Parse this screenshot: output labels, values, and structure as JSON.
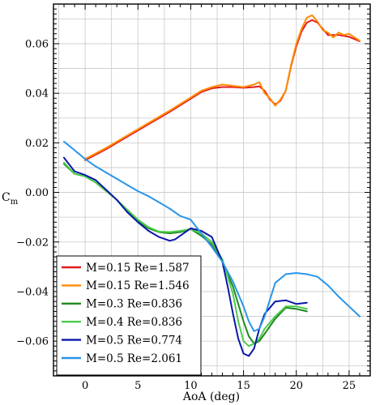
{
  "chart_data": {
    "type": "line",
    "title": "",
    "xlabel": "AoA (deg)",
    "ylabel": "C",
    "ylabel_sub": "m",
    "xlim": [
      -3,
      27
    ],
    "ylim": [
      -0.074,
      0.076
    ],
    "xticks": [
      0,
      5,
      10,
      15,
      20,
      25
    ],
    "yticks": [
      -0.06,
      -0.04,
      -0.02,
      0.0,
      0.02,
      0.04,
      0.06
    ],
    "ytick_labels": [
      "−0.06",
      "−0.04",
      "−0.02",
      "0.00",
      "0.02",
      "0.04",
      "0.06"
    ],
    "grid": true,
    "legend_position": "bottom-left",
    "series": [
      {
        "name": "M=0.15 Re=1.587",
        "color": "#e41a1c",
        "x": [
          0,
          2,
          4,
          6,
          8,
          10,
          11,
          12,
          13,
          14,
          15,
          16,
          16.5,
          17,
          17.5,
          18,
          18.5,
          19,
          19.5,
          20,
          20.5,
          21,
          21.5,
          22,
          22.5,
          23,
          24,
          25,
          26
        ],
        "y": [
          0.013,
          0.0175,
          0.0225,
          0.0275,
          0.0325,
          0.0378,
          0.0405,
          0.042,
          0.0425,
          0.0425,
          0.0422,
          0.0425,
          0.0428,
          0.041,
          0.0375,
          0.0355,
          0.037,
          0.041,
          0.051,
          0.059,
          0.065,
          0.0685,
          0.0695,
          0.0685,
          0.066,
          0.0635,
          0.0635,
          0.0628,
          0.061
        ]
      },
      {
        "name": "M=0.15 Re=1.546",
        "color": "#ff8c00",
        "x": [
          0,
          2,
          4,
          6,
          8,
          10,
          11,
          12,
          13,
          14,
          15,
          16,
          16.5,
          17,
          17.5,
          18,
          18.5,
          19,
          19.5,
          20,
          20.5,
          21,
          21.5,
          22,
          22.5,
          23,
          23.5,
          24,
          24.5,
          25,
          26
        ],
        "y": [
          0.0135,
          0.018,
          0.023,
          0.028,
          0.033,
          0.0383,
          0.041,
          0.0425,
          0.0435,
          0.043,
          0.0425,
          0.0435,
          0.0445,
          0.04,
          0.038,
          0.035,
          0.0375,
          0.041,
          0.0515,
          0.06,
          0.066,
          0.0705,
          0.0715,
          0.069,
          0.0655,
          0.0645,
          0.0625,
          0.0645,
          0.0635,
          0.064,
          0.0612
        ]
      },
      {
        "name": "M=0.3 Re=0.836",
        "color": "#1f8a1f",
        "x": [
          -2,
          -1,
          0,
          1,
          2,
          3,
          4,
          5,
          6,
          7,
          8,
          9,
          10,
          11,
          12,
          13,
          14,
          15,
          15.5,
          16,
          16.5,
          17,
          18,
          19,
          20,
          21
        ],
        "y": [
          0.0115,
          0.0075,
          0.0065,
          0.004,
          0.0005,
          -0.003,
          -0.0075,
          -0.0115,
          -0.0145,
          -0.016,
          -0.0165,
          -0.016,
          -0.0148,
          -0.0175,
          -0.021,
          -0.028,
          -0.038,
          -0.052,
          -0.058,
          -0.061,
          -0.06,
          -0.057,
          -0.051,
          -0.0465,
          -0.047,
          -0.048
        ]
      },
      {
        "name": "M=0.4 Re=0.836",
        "color": "#4ccc4c",
        "x": [
          -2,
          -1,
          0,
          1,
          2,
          3,
          4,
          5,
          6,
          7,
          8,
          9,
          10,
          11,
          12,
          13,
          14,
          14.5,
          15,
          15.5,
          16,
          16.5,
          17,
          18,
          19,
          20,
          21
        ],
        "y": [
          0.012,
          0.0075,
          0.0065,
          0.004,
          0.0005,
          -0.003,
          -0.007,
          -0.011,
          -0.014,
          -0.0158,
          -0.016,
          -0.0155,
          -0.0148,
          -0.0165,
          -0.02,
          -0.027,
          -0.041,
          -0.052,
          -0.06,
          -0.062,
          -0.061,
          -0.059,
          -0.055,
          -0.05,
          -0.046,
          -0.046,
          -0.047
        ]
      },
      {
        "name": "M=0.5 Re=0.774",
        "color": "#0b17a8",
        "x": [
          -2,
          -1,
          0,
          1,
          2,
          3,
          4,
          5,
          6,
          7,
          8,
          8.5,
          9,
          10,
          11,
          12,
          13,
          13.5,
          14,
          14.5,
          15,
          15.5,
          16,
          16.5,
          17,
          18,
          19,
          20,
          21
        ],
        "y": [
          0.014,
          0.0085,
          0.007,
          0.005,
          0.001,
          -0.003,
          -0.008,
          -0.012,
          -0.0155,
          -0.018,
          -0.0195,
          -0.019,
          -0.0175,
          -0.0145,
          -0.0155,
          -0.018,
          -0.028,
          -0.038,
          -0.049,
          -0.059,
          -0.065,
          -0.066,
          -0.063,
          -0.055,
          -0.049,
          -0.044,
          -0.0435,
          -0.045,
          -0.0445
        ]
      },
      {
        "name": "M=0.5 Re=2.061",
        "color": "#2b95e8",
        "x": [
          -2,
          -1,
          0,
          1,
          2,
          3,
          4,
          5,
          6,
          7,
          8,
          9,
          10,
          11,
          12,
          13,
          14,
          14.5,
          15,
          15.5,
          16,
          16.5,
          17,
          18,
          19,
          20,
          21,
          22,
          23,
          24,
          25,
          26
        ],
        "y": [
          0.0205,
          0.017,
          0.0135,
          0.0105,
          0.008,
          0.0055,
          0.003,
          0.0005,
          -0.0015,
          -0.004,
          -0.0065,
          -0.0095,
          -0.011,
          -0.0165,
          -0.022,
          -0.028,
          -0.036,
          -0.041,
          -0.046,
          -0.052,
          -0.056,
          -0.055,
          -0.05,
          -0.0365,
          -0.033,
          -0.0325,
          -0.033,
          -0.034,
          -0.0375,
          -0.042,
          -0.046,
          -0.05
        ]
      }
    ]
  }
}
